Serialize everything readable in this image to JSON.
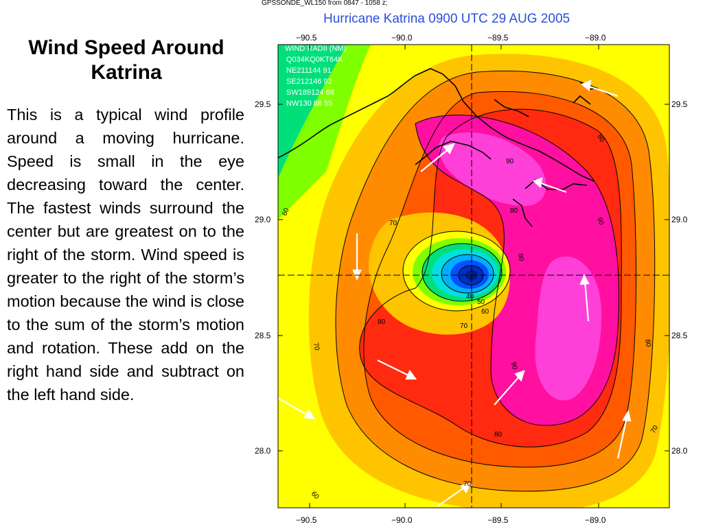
{
  "slide": {
    "title": "Wind Speed Around Katrina",
    "body": "This is a typical wind profile around a moving hurricane. Speed is small in the eye decreasing toward the center. The fastest winds surround the center but are greatest on to the right of the storm. Wind speed is greater to the right of the storm’s motion because the wind is close to the sum of the storm’s motion and rotation. These add on the right hand side and subtract on the left hand side."
  },
  "map": {
    "source_line": "GPSSONDE_WL150 from 0847 - 1058 z;",
    "title": "Hurricane Katrina 0900 UTC 29 AUG 2005",
    "title_color": "#2a4fd6",
    "lon_ticks": [
      "−90.5",
      "−90.0",
      "−89.5",
      "−89.0"
    ],
    "lat_ticks": [
      "29.5",
      "29.0",
      "28.5",
      "28.0"
    ],
    "wind_radii": {
      "header": "WIND RADII (NM)",
      "rows": [
        "Q034KQ0KT64K",
        "NE211144 91",
        "SE212146 92",
        "SW189124 68",
        "NW130 88 55"
      ]
    },
    "contour_labels": [
      "60",
      "70",
      "80",
      "90",
      "40",
      "50",
      "60",
      "70",
      "80",
      "90",
      "80",
      "70",
      "80",
      "70",
      "60",
      "70",
      "80",
      "90",
      "80"
    ],
    "colors": {
      "c50": "#00e07a",
      "c55": "#7fff00",
      "c60": "#ffff00",
      "c65": "#ffc400",
      "c70": "#ff8c00",
      "c75": "#ff5a00",
      "c80": "#ff2a10",
      "c85": "#ff10a0",
      "c90": "#ff40d8",
      "eye_cyan": "#00e0e0",
      "eye_blue": "#0050ff",
      "eye_core": "#002080"
    }
  }
}
